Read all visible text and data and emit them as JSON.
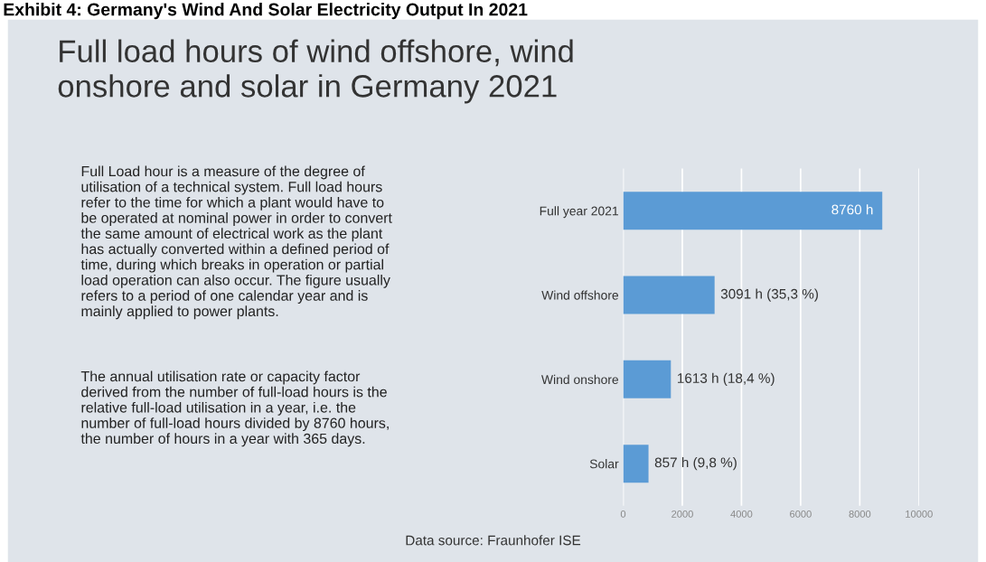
{
  "chart_data": {
    "type": "bar",
    "orientation": "horizontal",
    "title": "Exhibit 4: Germany's Wind And Solar Electricity Output In 2021",
    "subtitle": "Full load hours of wind offshore, wind\nonshore and solar in Germany 2021",
    "categories": [
      "Full year 2021",
      "Wind offshore",
      "Wind onshore",
      "Solar"
    ],
    "values": [
      8760,
      3091,
      1613,
      857
    ],
    "value_labels": [
      "8760 h",
      "3091 h (35,3 %)",
      "1613 h (18,4 %)",
      "857 h (9,8 %)"
    ],
    "color": "#5b9bd5",
    "xlim": [
      0,
      10000
    ],
    "xticks": [
      0,
      2000,
      4000,
      6000,
      8000,
      10000
    ],
    "grid": "x",
    "annotations": [
      "Full Load hour is a measure of the degree of\nutilisation of a technical system. Full load hours\nrefer to the time for which a plant would have to\nbe operated at nominal power in order to convert\nthe same amount of electrical work as the plant\nhas actually converted within a defined period of\ntime, during which breaks in operation or partial\nload operation can also occur. The figure usually\nrefers to a period of one calendar year and is\nmainly applied to power plants.",
      "The annual utilisation rate or capacity factor\nderived from the number of full-load hours is the\nrelative full-load utilisation in a year, i.e. the\nnumber of full-load hours divided by 8760 hours,\nthe number of hours in a year with 365 days.",
      "Data source: Fraunhofer ISE"
    ]
  }
}
